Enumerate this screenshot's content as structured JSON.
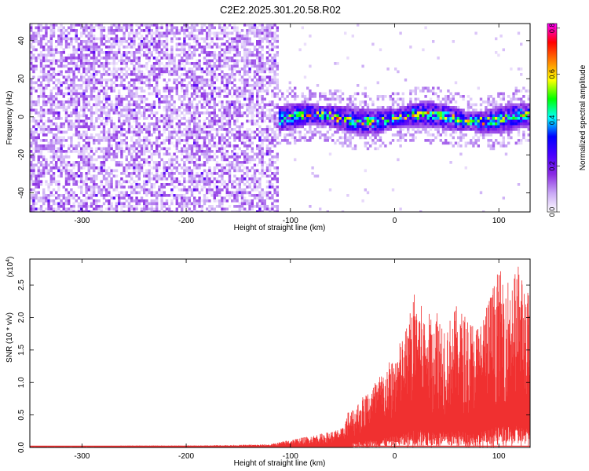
{
  "title": "C2E2.2025.301.20.58.R02",
  "chart_data": [
    {
      "type": "heatmap",
      "xlabel": "Height of straight line (km)",
      "ylabel": "Frequency (Hz)",
      "xlim": [
        -350,
        130
      ],
      "ylim": [
        -50,
        49
      ],
      "xticks": [
        -300,
        -200,
        -100,
        0,
        100
      ],
      "yticks": [
        -40,
        -20,
        0,
        20,
        40
      ],
      "colorbar": {
        "label": "Normalized spectral amplitude",
        "range": [
          0.0,
          0.82
        ],
        "ticks": [
          "0.0",
          "0.2",
          "0.4",
          "0.6",
          "0.8"
        ],
        "colors": [
          "#ffffff",
          "#c9a8f5",
          "#8a2be2",
          "#4b00ff",
          "#0000ff",
          "#00ffff",
          "#00ff00",
          "#ffff00",
          "#ff8000",
          "#ff0000",
          "#ff00ff"
        ]
      },
      "regions": [
        {
          "x_range": [
            -350,
            -113
          ],
          "description_value": "broadband noise",
          "freq_range": [
            -50,
            49
          ],
          "level": 0.05
        },
        {
          "x_range": [
            -113,
            130
          ],
          "description_value": "narrow band",
          "center_freq": 0,
          "bandwidth": 10,
          "level": 0.5
        }
      ]
    },
    {
      "type": "line",
      "xlabel": "Height of straight line (km)",
      "ylabel": "SNR (10 * v/v)",
      "y_exponent": "(x10",
      "y_exponent_power": "4",
      "y_exponent_close": ")",
      "xlim": [
        -350,
        130
      ],
      "ylim": [
        0,
        2.9
      ],
      "xticks": [
        -300,
        -200,
        -100,
        0,
        100
      ],
      "yticks": [
        "0.0",
        "0.5",
        "1.0",
        "1.5",
        "2.0",
        "2.5"
      ],
      "series": [
        {
          "color": "#f03030",
          "envelope": [
            [
              -350,
              0.02
            ],
            [
              -300,
              0.02
            ],
            [
              -250,
              0.03
            ],
            [
              -200,
              0.03
            ],
            [
              -150,
              0.04
            ],
            [
              -120,
              0.05
            ],
            [
              -100,
              0.12
            ],
            [
              -80,
              0.18
            ],
            [
              -60,
              0.25
            ],
            [
              -50,
              0.3
            ],
            [
              -45,
              0.55
            ],
            [
              -40,
              0.6
            ],
            [
              -30,
              0.8
            ],
            [
              -20,
              1.0
            ],
            [
              -10,
              1.2
            ],
            [
              0,
              1.45
            ],
            [
              10,
              1.8
            ],
            [
              20,
              2.45
            ],
            [
              30,
              2.0
            ],
            [
              40,
              2.2
            ],
            [
              50,
              1.9
            ],
            [
              60,
              2.2
            ],
            [
              70,
              2.0
            ],
            [
              80,
              1.9
            ],
            [
              90,
              2.3
            ],
            [
              100,
              2.75
            ],
            [
              110,
              2.6
            ],
            [
              120,
              2.85
            ],
            [
              130,
              2.3
            ]
          ]
        }
      ]
    }
  ]
}
